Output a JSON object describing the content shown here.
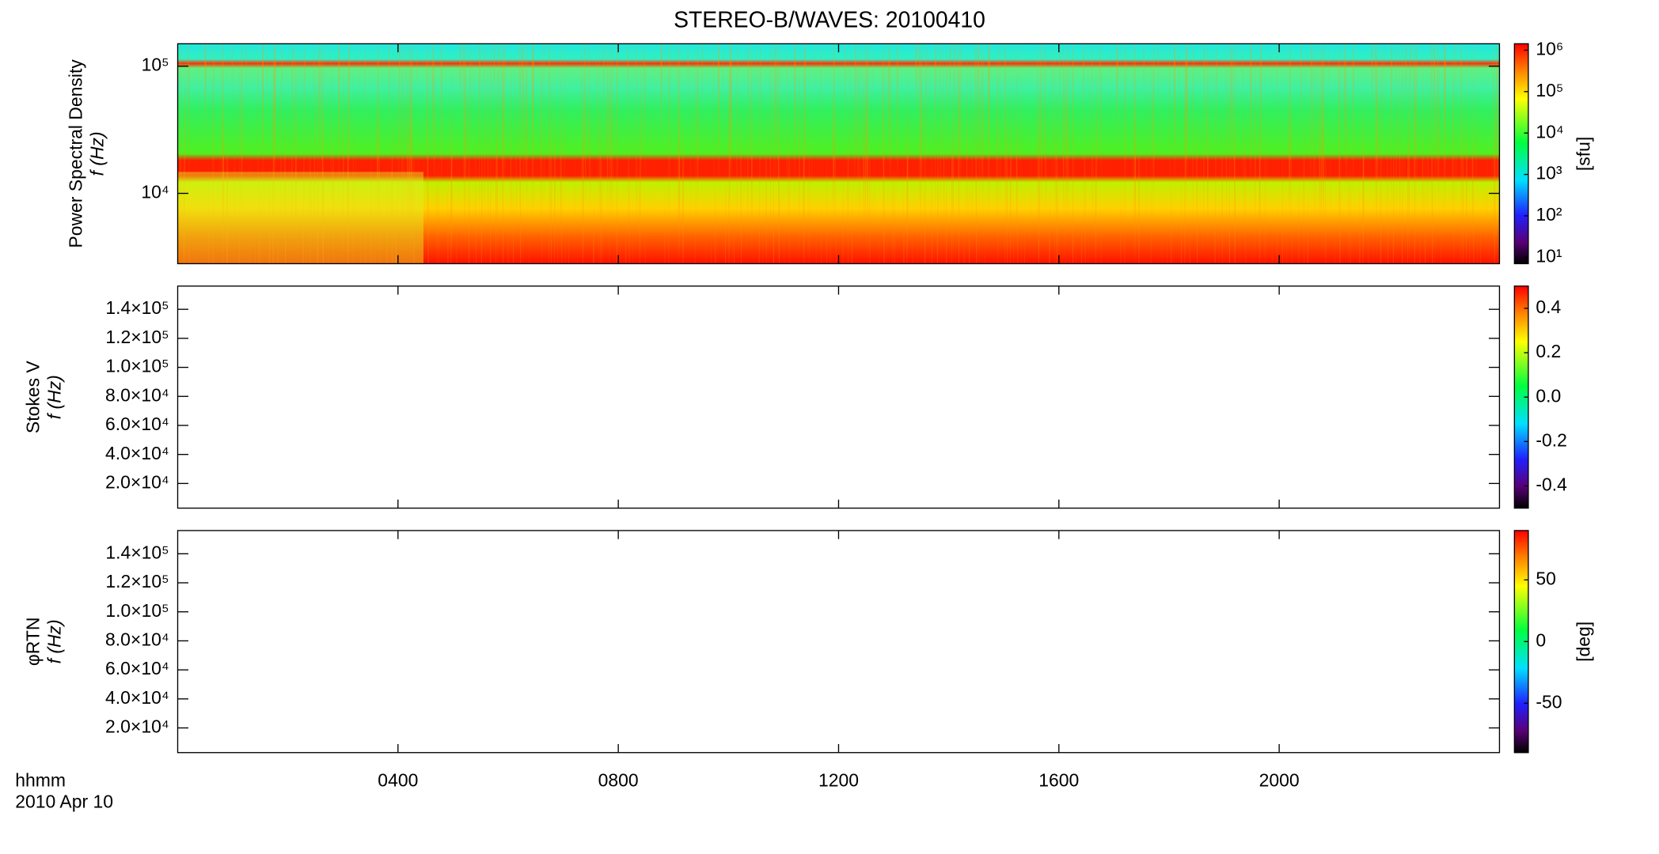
{
  "title": "STEREO-B/WAVES: 20100410",
  "x_label_lines": [
    "hhmm",
    "2010 Apr 10"
  ],
  "chart_data": [
    {
      "type": "spectrogram",
      "ylabel": [
        "Power Spectral Density",
        "f (Hz)"
      ],
      "ylog": true,
      "ylim": [
        2800,
        150000
      ],
      "yticks": [
        {
          "value": 10000,
          "label": "10⁴"
        },
        {
          "value": 100000,
          "label": "10⁵"
        }
      ],
      "xlim": [
        0,
        24
      ],
      "xticks": [
        {
          "value": 4,
          "label": "0400"
        },
        {
          "value": 8,
          "label": "0800"
        },
        {
          "value": 12,
          "label": "1200"
        },
        {
          "value": 16,
          "label": "1600"
        },
        {
          "value": 20,
          "label": "2000"
        }
      ],
      "colorbar": {
        "label": "[sfu]",
        "log": true,
        "lim": [
          7,
          1430000
        ],
        "ticks": [
          {
            "value": 10,
            "label": "10¹"
          },
          {
            "value": 100,
            "label": "10²"
          },
          {
            "value": 1000,
            "label": "10³"
          },
          {
            "value": 10000,
            "label": "10⁴"
          },
          {
            "value": 100000,
            "label": "10⁵"
          },
          {
            "value": 1000000,
            "label": "10⁶"
          }
        ]
      }
    },
    {
      "type": "spectrogram",
      "ylabel": [
        "Stokes V",
        "f (Hz)"
      ],
      "ylog": false,
      "ylim": [
        3000,
        156000
      ],
      "yticks": [
        {
          "value": 20000,
          "label": "2.0×10⁴"
        },
        {
          "value": 40000,
          "label": "4.0×10⁴"
        },
        {
          "value": 60000,
          "label": "6.0×10⁴"
        },
        {
          "value": 80000,
          "label": "8.0×10⁴"
        },
        {
          "value": 100000,
          "label": "1.0×10⁵"
        },
        {
          "value": 120000,
          "label": "1.2×10⁵"
        },
        {
          "value": 140000,
          "label": "1.4×10⁵"
        }
      ],
      "xlim": [
        0,
        24
      ],
      "xticks": [
        {
          "value": 4,
          "label": "0400"
        },
        {
          "value": 8,
          "label": "0800"
        },
        {
          "value": 12,
          "label": "1200"
        },
        {
          "value": 16,
          "label": "1600"
        },
        {
          "value": 20,
          "label": "2000"
        }
      ],
      "colorbar": {
        "log": false,
        "lim": [
          -0.5,
          0.5
        ],
        "ticks": [
          -0.4,
          -0.2,
          {
            "value": 0,
            "label": "0.0"
          },
          0.2,
          0.4
        ]
      }
    },
    {
      "type": "spectrogram",
      "ylabel": [
        "φRTN",
        "f (Hz)"
      ],
      "ylog": false,
      "ylim": [
        3000,
        156000
      ],
      "yticks": [
        {
          "value": 20000,
          "label": "2.0×10⁴"
        },
        {
          "value": 40000,
          "label": "4.0×10⁴"
        },
        {
          "value": 60000,
          "label": "6.0×10⁴"
        },
        {
          "value": 80000,
          "label": "8.0×10⁴"
        },
        {
          "value": 100000,
          "label": "1.0×10⁵"
        },
        {
          "value": 120000,
          "label": "1.2×10⁵"
        },
        {
          "value": 140000,
          "label": "1.4×10⁵"
        }
      ],
      "xlim": [
        0,
        24
      ],
      "xticks": [
        {
          "value": 4,
          "label": "0400"
        },
        {
          "value": 8,
          "label": "0800"
        },
        {
          "value": 12,
          "label": "1200"
        },
        {
          "value": 16,
          "label": "1600"
        },
        {
          "value": 20,
          "label": "2000"
        }
      ],
      "colorbar": {
        "label": "[deg]",
        "log": false,
        "lim": [
          -90,
          90
        ],
        "ticks": [
          -50,
          0,
          50
        ]
      }
    }
  ]
}
